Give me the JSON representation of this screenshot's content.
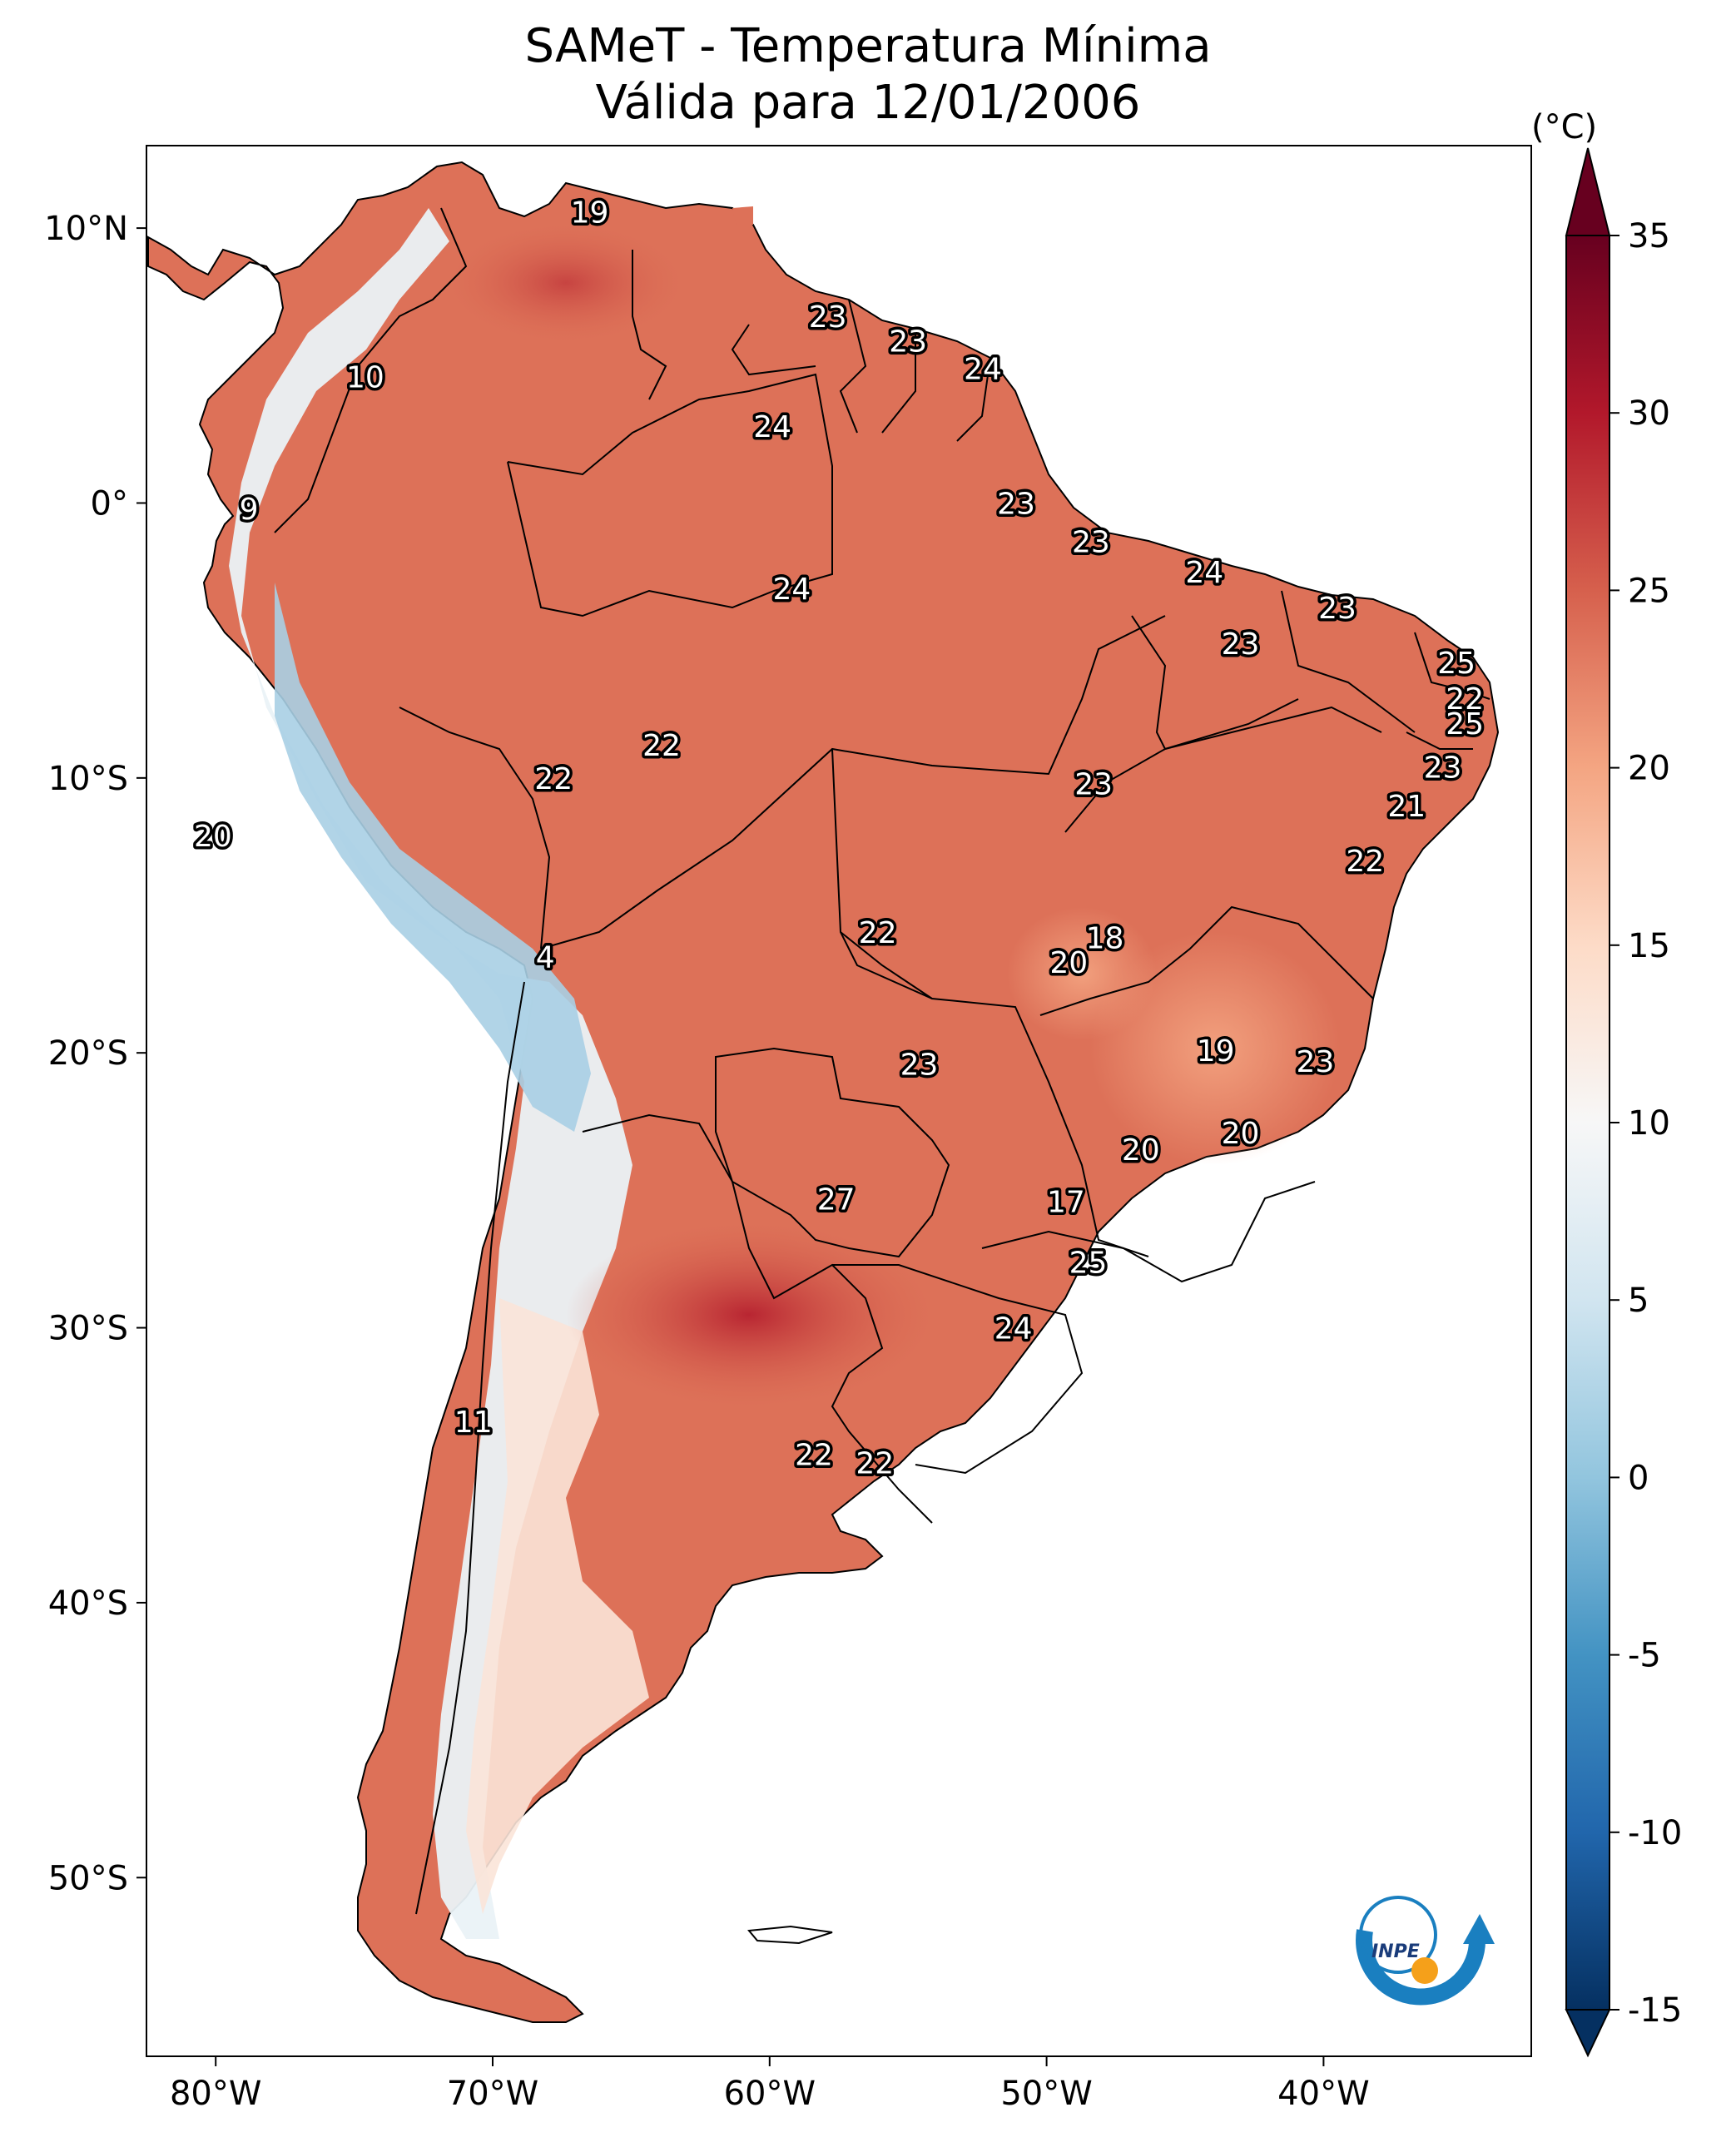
{
  "title": {
    "line1": "SAMeT - Temperatura Mínima",
    "line2": "Válida para 12/01/2006"
  },
  "axes": {
    "lon_ticks": [
      "80°W",
      "70°W",
      "60°W",
      "50°W",
      "40°W"
    ],
    "lat_ticks": [
      "10°N",
      "0°",
      "10°S",
      "20°S",
      "30°S",
      "40°S",
      "50°S"
    ],
    "extent": {
      "lon": [
        -82.5,
        -32.5
      ],
      "lat": [
        -56.5,
        13
      ]
    }
  },
  "colorbar": {
    "unit": "(°C)",
    "ticks": [
      "35",
      "30",
      "25",
      "20",
      "15",
      "10",
      "5",
      "0",
      "-5",
      "-10",
      "-15"
    ],
    "range": [
      -15,
      35
    ],
    "colors": [
      "#053061",
      "#2166ac",
      "#4393c3",
      "#92c5de",
      "#d1e5f0",
      "#f7f7f7",
      "#fddbc7",
      "#f4a582",
      "#d6604d",
      "#b2182b",
      "#67001f"
    ]
  },
  "logo": {
    "text": "INPE",
    "ring_color": "#1a7fc0",
    "dot_color": "#f5a01a"
  },
  "station_labels": [
    {
      "value": "19",
      "lon": -66.5,
      "lat": 10.6
    },
    {
      "value": "10",
      "lon": -74.6,
      "lat": 4.6
    },
    {
      "value": "9",
      "lon": -78.8,
      "lat": -0.2
    },
    {
      "value": "23",
      "lon": -57.9,
      "lat": 6.8
    },
    {
      "value": "23",
      "lon": -55.0,
      "lat": 5.9
    },
    {
      "value": "24",
      "lon": -52.3,
      "lat": 4.9
    },
    {
      "value": "24",
      "lon": -59.9,
      "lat": 2.8
    },
    {
      "value": "23",
      "lon": -51.1,
      "lat": 0.0
    },
    {
      "value": "23",
      "lon": -48.4,
      "lat": -1.4
    },
    {
      "value": "24",
      "lon": -59.2,
      "lat": -3.1
    },
    {
      "value": "24",
      "lon": -44.3,
      "lat": -2.5
    },
    {
      "value": "23",
      "lon": -39.5,
      "lat": -3.8
    },
    {
      "value": "23",
      "lon": -43.0,
      "lat": -5.1
    },
    {
      "value": "25",
      "lon": -35.2,
      "lat": -5.8
    },
    {
      "value": "22",
      "lon": -34.9,
      "lat": -7.1
    },
    {
      "value": "25",
      "lon": -34.9,
      "lat": -8.0
    },
    {
      "value": "23",
      "lon": -35.7,
      "lat": -9.6
    },
    {
      "value": "22",
      "lon": -63.9,
      "lat": -8.8
    },
    {
      "value": "22",
      "lon": -67.8,
      "lat": -10.0
    },
    {
      "value": "23",
      "lon": -48.3,
      "lat": -10.2
    },
    {
      "value": "21",
      "lon": -37.0,
      "lat": -11.0
    },
    {
      "value": "22",
      "lon": -38.5,
      "lat": -13.0
    },
    {
      "value": "20",
      "lon": -80.1,
      "lat": -12.1
    },
    {
      "value": "22",
      "lon": -56.1,
      "lat": -15.6
    },
    {
      "value": "18",
      "lon": -47.9,
      "lat": -15.8
    },
    {
      "value": "20",
      "lon": -49.2,
      "lat": -16.7
    },
    {
      "value": "4",
      "lon": -68.1,
      "lat": -16.5
    },
    {
      "value": "19",
      "lon": -43.9,
      "lat": -19.9
    },
    {
      "value": "23",
      "lon": -54.6,
      "lat": -20.4
    },
    {
      "value": "23",
      "lon": -40.3,
      "lat": -20.3
    },
    {
      "value": "20",
      "lon": -43.0,
      "lat": -22.9
    },
    {
      "value": "20",
      "lon": -46.6,
      "lat": -23.5
    },
    {
      "value": "27",
      "lon": -57.6,
      "lat": -25.3
    },
    {
      "value": "17",
      "lon": -49.3,
      "lat": -25.4
    },
    {
      "value": "25",
      "lon": -48.5,
      "lat": -27.6
    },
    {
      "value": "24",
      "lon": -51.2,
      "lat": -30.0
    },
    {
      "value": "11",
      "lon": -70.7,
      "lat": -33.4
    },
    {
      "value": "22",
      "lon": -58.4,
      "lat": -34.6
    },
    {
      "value": "22",
      "lon": -56.2,
      "lat": -34.9
    }
  ]
}
